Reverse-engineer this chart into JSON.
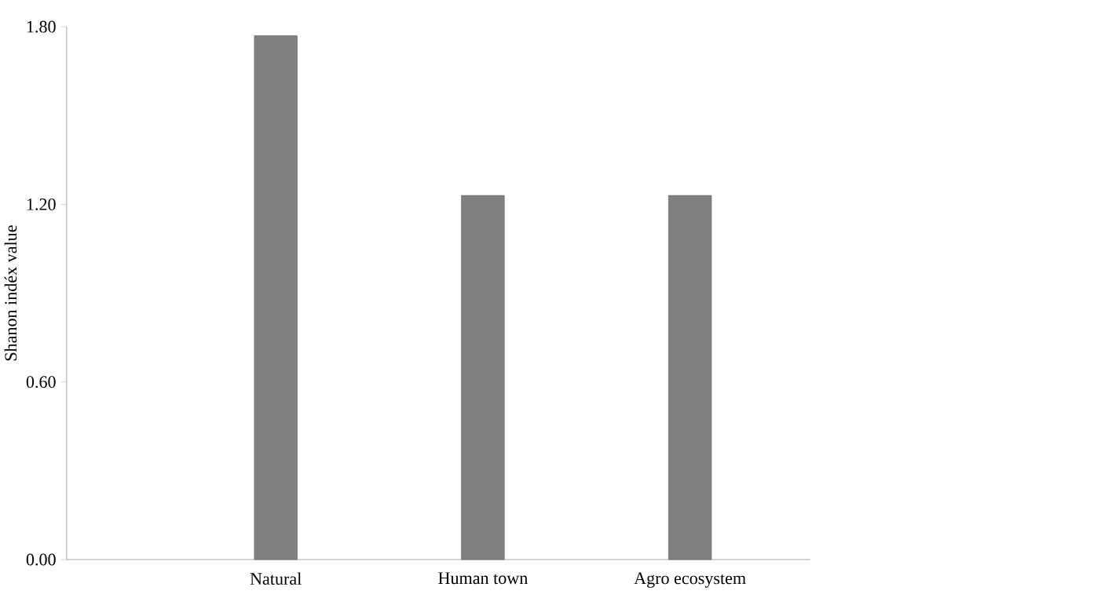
{
  "chart_data": {
    "type": "bar",
    "ylabel": "Shanon indéx value",
    "categories": [
      "Natural",
      "Human town",
      "Agro ecosystem"
    ],
    "values": [
      1.77,
      1.23,
      1.23
    ],
    "color": "#808080",
    "ylim": [
      0,
      1.8
    ],
    "yticks": [
      {
        "value": 0,
        "label": "0.00"
      },
      {
        "value": 0.6,
        "label": "0.60"
      },
      {
        "value": 1.2,
        "label": "1.20"
      },
      {
        "value": 1.8,
        "label": "1.80"
      }
    ],
    "grid": false
  }
}
